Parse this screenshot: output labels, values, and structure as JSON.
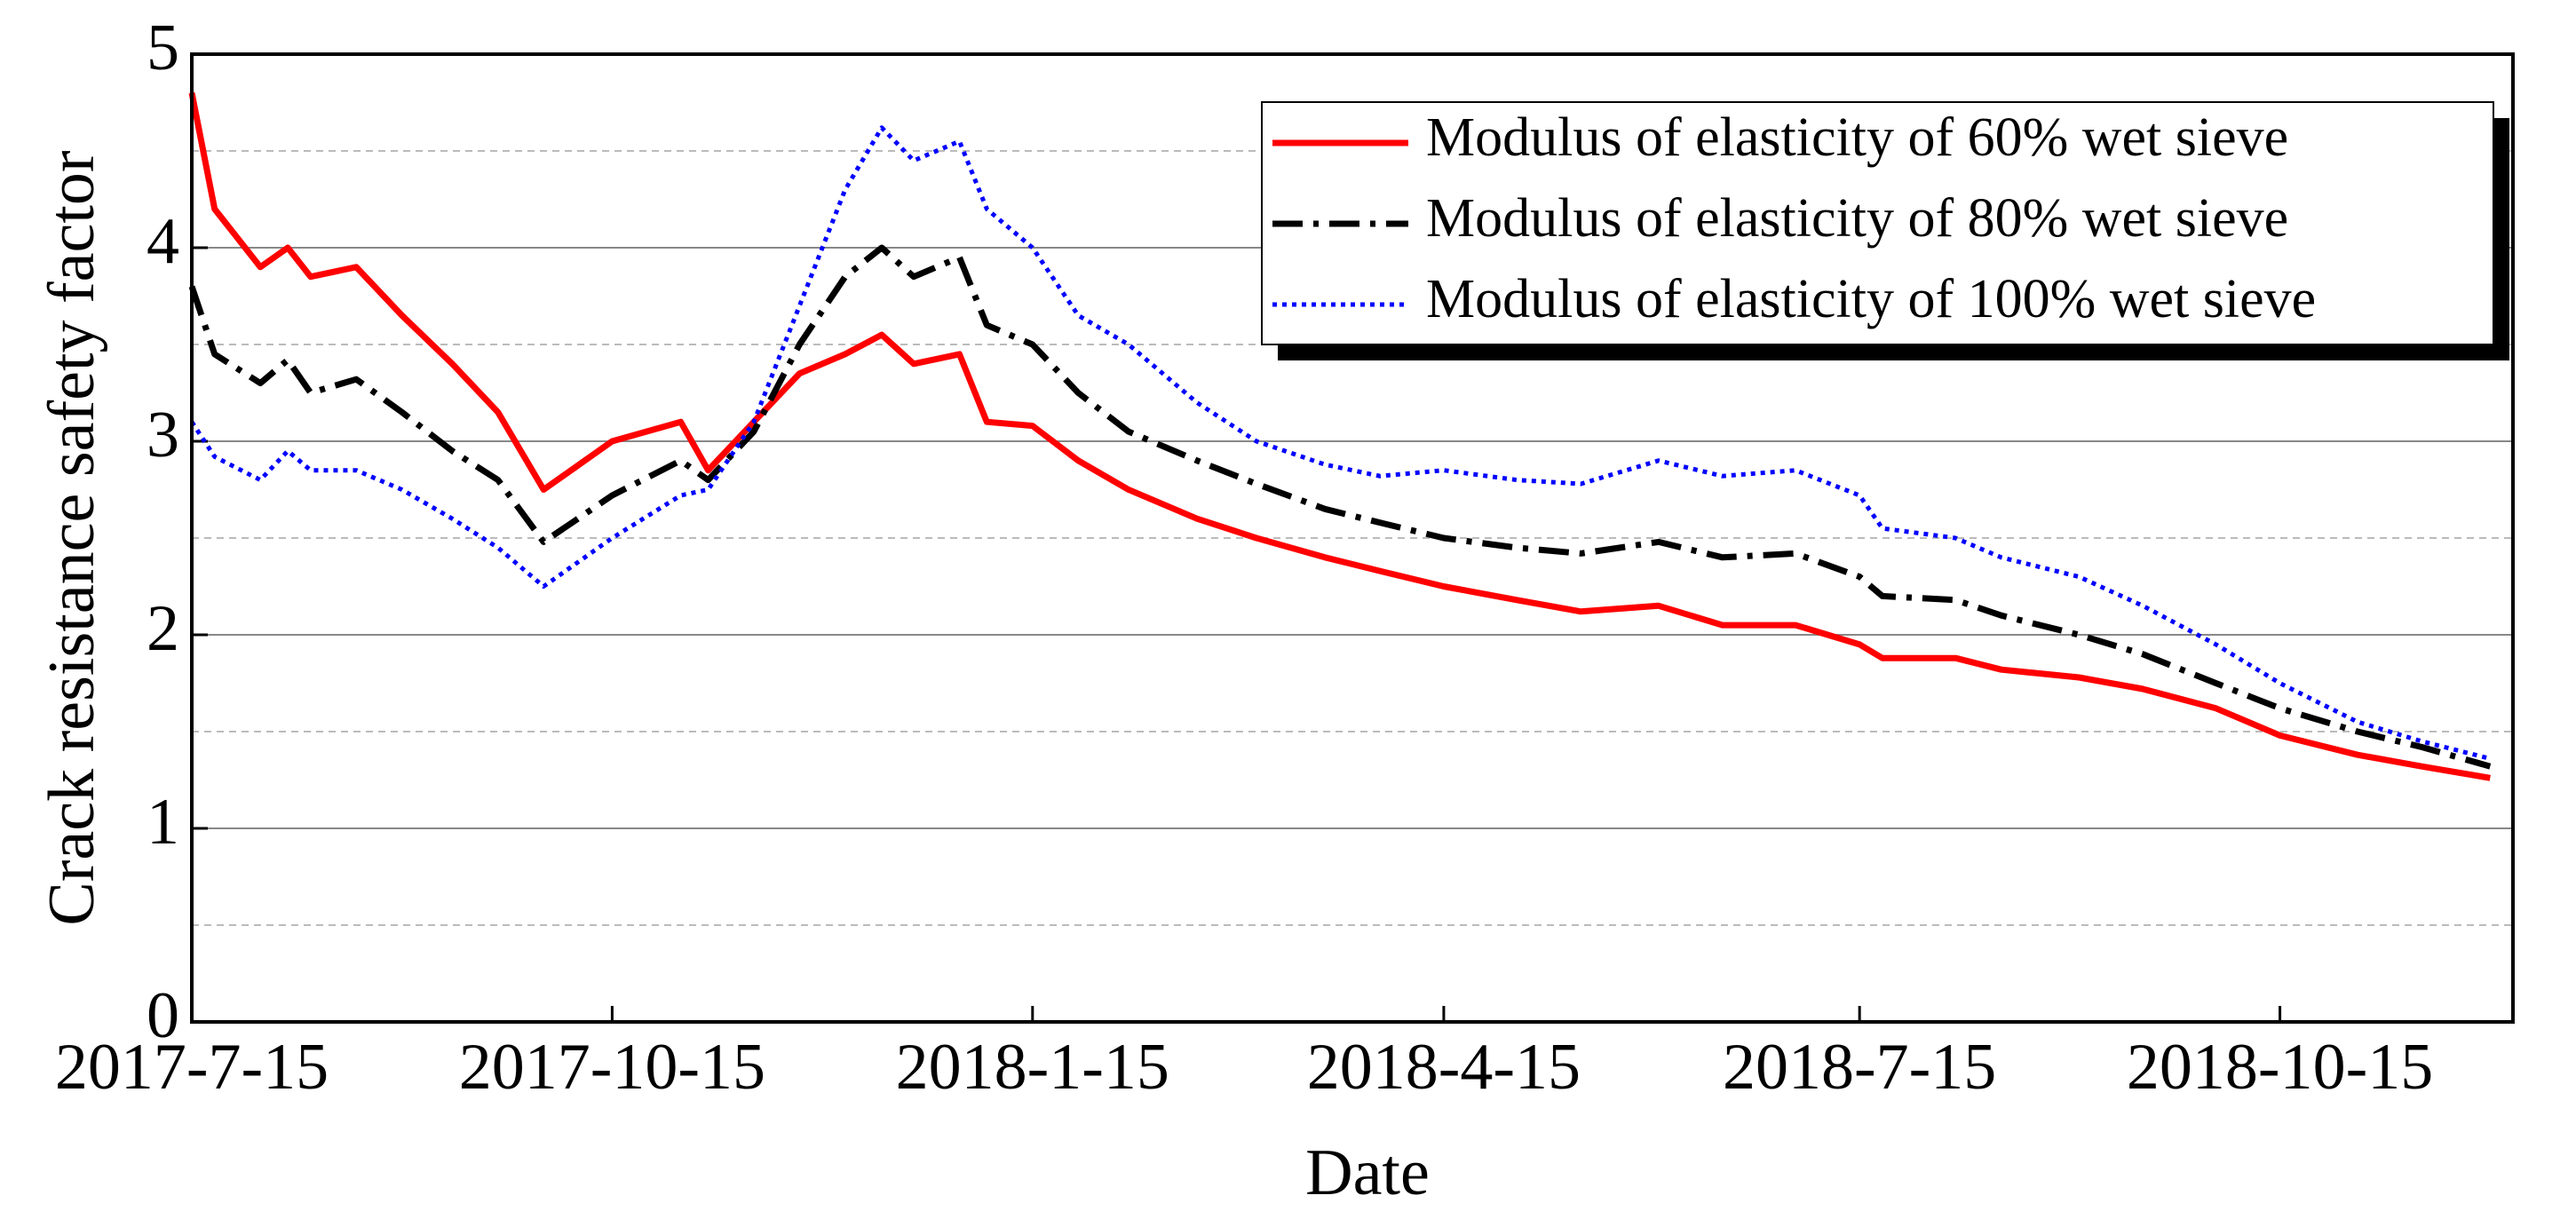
{
  "chart_data": {
    "type": "line",
    "xlabel": "Date",
    "ylabel": "Crack resistance safety factor",
    "x": [
      "2017-7-15",
      "2017-7-20",
      "2017-7-30",
      "2017-8-5",
      "2017-8-10",
      "2017-8-20",
      "2017-8-30",
      "2017-9-10",
      "2017-9-20",
      "2017-9-30",
      "2017-10-15",
      "2017-10-30",
      "2017-11-5",
      "2017-11-15",
      "2017-11-25",
      "2017-12-5",
      "2017-12-13",
      "2017-12-20",
      "2017-12-30",
      "2018-1-5",
      "2018-1-15",
      "2018-1-25",
      "2018-2-5",
      "2018-2-20",
      "2018-3-5",
      "2018-3-20",
      "2018-4-1",
      "2018-4-15",
      "2018-5-1",
      "2018-5-15",
      "2018-6-1",
      "2018-6-15",
      "2018-7-1",
      "2018-7-15",
      "2018-7-20",
      "2018-8-5",
      "2018-8-15",
      "2018-9-1",
      "2018-9-15",
      "2018-10-1",
      "2018-10-15",
      "2018-11-1",
      "2018-11-15",
      "2018-11-30"
    ],
    "series": [
      {
        "name": "Modulus of elasticity of 60% wet sieve",
        "color": "#ff0000",
        "linestyle": "solid",
        "values": [
          4.8,
          4.2,
          3.9,
          4.0,
          3.85,
          3.9,
          3.65,
          3.4,
          3.15,
          2.75,
          3.0,
          3.1,
          2.85,
          3.1,
          3.35,
          3.45,
          3.55,
          3.4,
          3.45,
          3.1,
          3.08,
          2.9,
          2.75,
          2.6,
          2.5,
          2.4,
          2.33,
          2.25,
          2.18,
          2.12,
          2.15,
          2.05,
          2.05,
          1.95,
          1.88,
          1.88,
          1.82,
          1.78,
          1.72,
          1.62,
          1.48,
          1.38,
          1.32,
          1.26
        ]
      },
      {
        "name": "Modulus of elasticity of 80% wet sieve",
        "color": "#000000",
        "linestyle": "dashdot",
        "values": [
          3.8,
          3.45,
          3.3,
          3.42,
          3.25,
          3.32,
          3.15,
          2.95,
          2.8,
          2.48,
          2.72,
          2.9,
          2.8,
          3.05,
          3.5,
          3.85,
          4.0,
          3.85,
          3.95,
          3.6,
          3.5,
          3.25,
          3.05,
          2.9,
          2.78,
          2.65,
          2.58,
          2.5,
          2.45,
          2.42,
          2.48,
          2.4,
          2.42,
          2.3,
          2.2,
          2.18,
          2.1,
          2.0,
          1.9,
          1.75,
          1.62,
          1.5,
          1.42,
          1.32
        ]
      },
      {
        "name": "Modulus of elasticity of 100% wet sieve",
        "color": "#0000ff",
        "linestyle": "dotted",
        "values": [
          3.1,
          2.92,
          2.8,
          2.95,
          2.85,
          2.85,
          2.75,
          2.6,
          2.45,
          2.25,
          2.5,
          2.72,
          2.75,
          3.1,
          3.7,
          4.3,
          4.62,
          4.45,
          4.55,
          4.2,
          4.0,
          3.65,
          3.5,
          3.2,
          3.0,
          2.88,
          2.82,
          2.85,
          2.8,
          2.78,
          2.9,
          2.82,
          2.85,
          2.72,
          2.55,
          2.5,
          2.4,
          2.3,
          2.15,
          1.95,
          1.75,
          1.55,
          1.45,
          1.36
        ]
      }
    ],
    "xlim": [
      "2017-7-15",
      "2018-12-5"
    ],
    "xticks": [
      "2017-7-15",
      "2017-10-15",
      "2018-1-15",
      "2018-4-15",
      "2018-7-15",
      "2018-10-15"
    ],
    "ylim": [
      0,
      5
    ],
    "yticks": [
      0,
      1,
      2,
      3,
      4,
      5
    ],
    "grid": true,
    "legend": "upper right"
  }
}
